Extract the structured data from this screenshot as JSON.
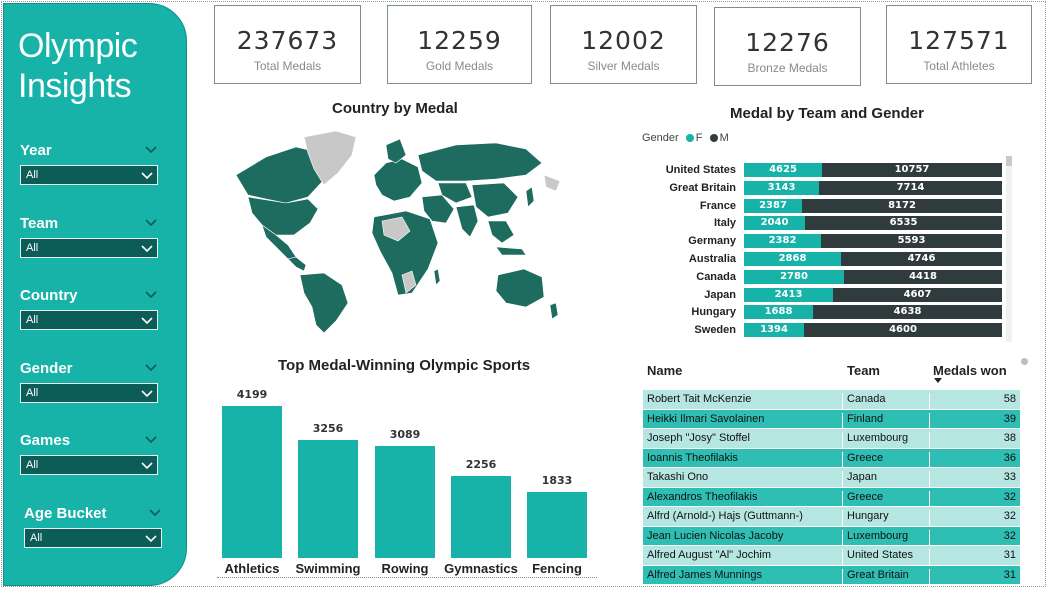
{
  "app": {
    "title_line1": "Olympic",
    "title_line2": "Insights"
  },
  "filters": [
    {
      "label": "Year",
      "value": "All"
    },
    {
      "label": "Team",
      "value": "All"
    },
    {
      "label": "Country",
      "value": "All"
    },
    {
      "label": "Gender",
      "value": "All"
    },
    {
      "label": "Games",
      "value": "All"
    },
    {
      "label": "Age Bucket",
      "value": "All"
    }
  ],
  "kpis": [
    {
      "value": "237673",
      "label": "Total Medals"
    },
    {
      "value": "12259",
      "label": "Gold Medals"
    },
    {
      "value": "12002",
      "label": "Silver Medals"
    },
    {
      "value": "12276",
      "label": "Bronze Medals"
    },
    {
      "value": "127571",
      "label": "Total Athletes"
    }
  ],
  "map": {
    "title": "Country by Medal"
  },
  "colors": {
    "accent": "#17b3a8",
    "dark": "#2f3b3c",
    "sidebar_select": "#0c5c57",
    "map_fill": "#1e6b5f",
    "map_empty": "#c8c8c8"
  },
  "team_gender": {
    "title": "Medal by Team and Gender",
    "legend_title": "Gender",
    "legend": [
      {
        "label": "F",
        "color": "#17b3a8"
      },
      {
        "label": "M",
        "color": "#2f3b3c"
      }
    ]
  },
  "sports": {
    "title": "Top Medal-Winning Olympic Sports"
  },
  "table": {
    "headers": {
      "name": "Name",
      "team": "Team",
      "won": "Medals won"
    },
    "rows": [
      {
        "name": "Robert Tait McKenzie",
        "team": "Canada",
        "won": "58"
      },
      {
        "name": "Heikki Ilmari Savolainen",
        "team": "Finland",
        "won": "39"
      },
      {
        "name": "Joseph \"Josy\" Stoffel",
        "team": "Luxembourg",
        "won": "38"
      },
      {
        "name": "Ioannis Theofilakis",
        "team": "Greece",
        "won": "36"
      },
      {
        "name": "Takashi Ono",
        "team": "Japan",
        "won": "33"
      },
      {
        "name": "Alexandros Theofilakis",
        "team": "Greece",
        "won": "32"
      },
      {
        "name": "Alfrd (Arnold-) Hajs (Guttmann-)",
        "team": "Hungary",
        "won": "32"
      },
      {
        "name": "Jean Lucien Nicolas Jacoby",
        "team": "Luxembourg",
        "won": "32"
      },
      {
        "name": "Alfred August \"Al\" Jochim",
        "team": "United States",
        "won": "31"
      },
      {
        "name": "Alfred James Munnings",
        "team": "Great Britain",
        "won": "31"
      }
    ]
  },
  "chart_data": [
    {
      "type": "bar",
      "orientation": "horizontal-stacked",
      "title": "Medal by Team and Gender",
      "categories": [
        "United States",
        "Great Britain",
        "France",
        "Italy",
        "Germany",
        "Australia",
        "Canada",
        "Japan",
        "Hungary",
        "Sweden"
      ],
      "series": [
        {
          "name": "F",
          "values": [
            4625,
            3143,
            2387,
            2040,
            2382,
            2868,
            2780,
            2413,
            1688,
            1394
          ]
        },
        {
          "name": "M",
          "values": [
            10757,
            7714,
            8172,
            6535,
            5593,
            4746,
            4418,
            4607,
            4638,
            4600
          ]
        }
      ]
    },
    {
      "type": "bar",
      "title": "Top Medal-Winning Olympic Sports",
      "categories": [
        "Athletics",
        "Swimming",
        "Rowing",
        "Gymnastics",
        "Fencing"
      ],
      "values": [
        4199,
        3256,
        3089,
        2256,
        1833
      ]
    }
  ]
}
